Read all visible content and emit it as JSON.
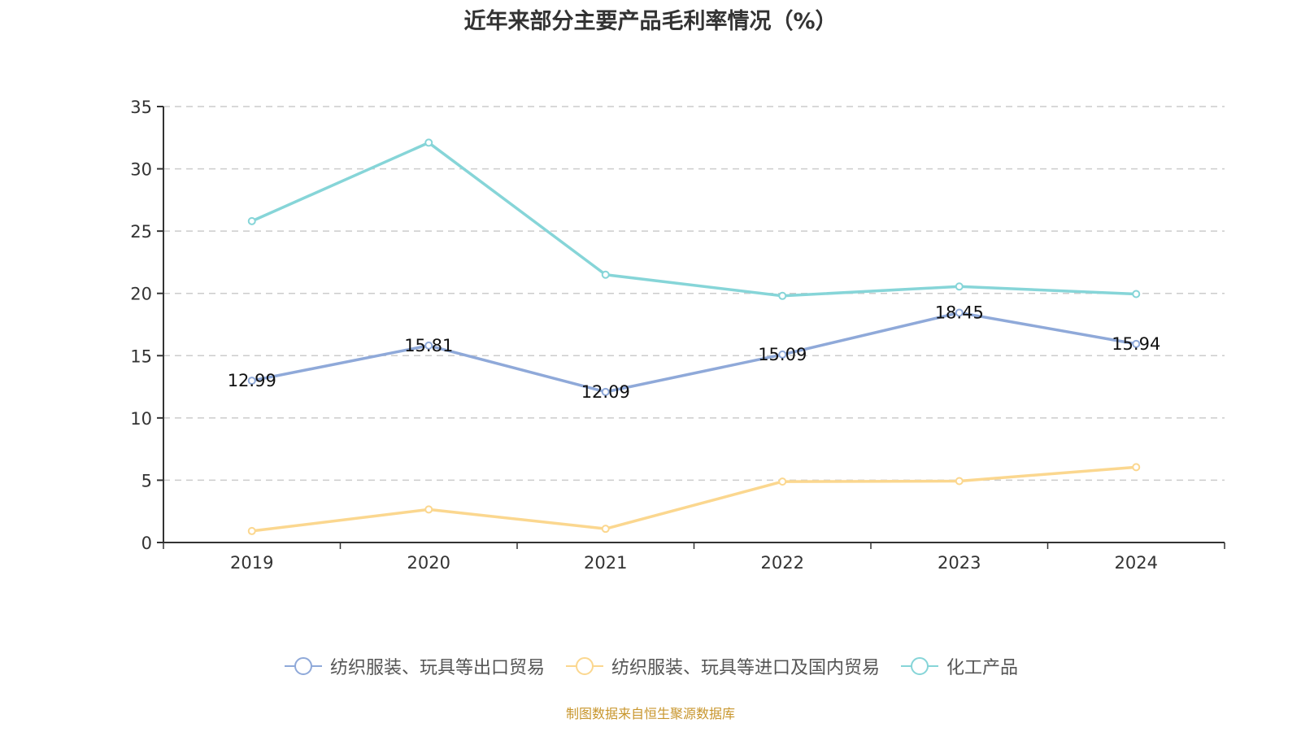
{
  "chart_data": {
    "type": "line",
    "title": "近年来部分主要产品毛利率情况（%）",
    "xlabel": "",
    "ylabel": "",
    "categories": [
      "2019",
      "2020",
      "2021",
      "2022",
      "2023",
      "2024"
    ],
    "ylim": [
      0,
      35
    ],
    "yticks": [
      0,
      5,
      10,
      15,
      20,
      25,
      30,
      35
    ],
    "grid": true,
    "legend_position": "bottom-center",
    "series": [
      {
        "name": "纺织服装、玩具等出口贸易",
        "color": "#8fa9d9",
        "values": [
          12.99,
          15.81,
          12.09,
          15.09,
          18.45,
          15.94
        ],
        "show_labels": true
      },
      {
        "name": "纺织服装、玩具等进口及国内贸易",
        "color": "#fbd78f",
        "values": [
          0.92,
          2.65,
          1.1,
          4.89,
          4.93,
          6.05
        ],
        "show_labels": false
      },
      {
        "name": "化工产品",
        "color": "#86d5d8",
        "values": [
          25.8,
          32.1,
          21.5,
          19.8,
          20.55,
          19.95
        ],
        "show_labels": false
      }
    ]
  },
  "footer": {
    "source": "制图数据来自恒生聚源数据库"
  }
}
